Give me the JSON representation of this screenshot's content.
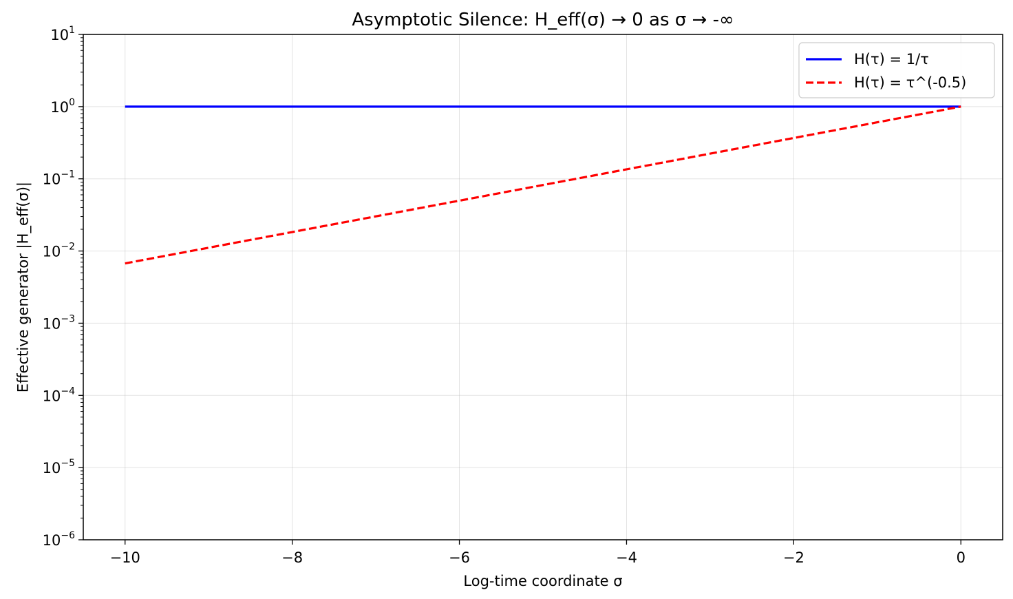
{
  "chart_data": {
    "type": "line",
    "title": "Asymptotic Silence: H_eff(σ) → 0 as σ → -∞",
    "xlabel": "Log-time coordinate σ",
    "ylabel": "Effective generator |H_eff(σ)|",
    "xlim": [
      -10.5,
      0.5
    ],
    "ylim": [
      1e-06,
      10
    ],
    "yscale": "log",
    "grid": true,
    "legend_position": "top-right",
    "x_ticks": [
      -10,
      -8,
      -6,
      -4,
      -2,
      0
    ],
    "x_tick_labels": [
      "−10",
      "−8",
      "−6",
      "−4",
      "−2",
      "0"
    ],
    "y_tick_exponents": [
      1,
      0,
      -1,
      -2,
      -3,
      -4,
      -5,
      -6
    ],
    "y_tick_labels": [
      "10^1",
      "10^0",
      "10^-1",
      "10^-2",
      "10^-3",
      "10^-4",
      "10^-5",
      "10^-6"
    ],
    "series": [
      {
        "name": "H(τ) = 1/τ",
        "color": "#0000ff",
        "style": "solid",
        "x": [
          -10,
          -8,
          -6,
          -4,
          -2,
          0
        ],
        "y": [
          1,
          1,
          1,
          1,
          1,
          1
        ]
      },
      {
        "name": "H(τ) = τ^(-0.5)",
        "color": "#ff0000",
        "style": "dashed",
        "x": [
          -10,
          -8,
          -6,
          -4,
          -2,
          0
        ],
        "y": [
          0.006738,
          0.018316,
          0.049787,
          0.135335,
          0.367879,
          1
        ]
      }
    ]
  }
}
